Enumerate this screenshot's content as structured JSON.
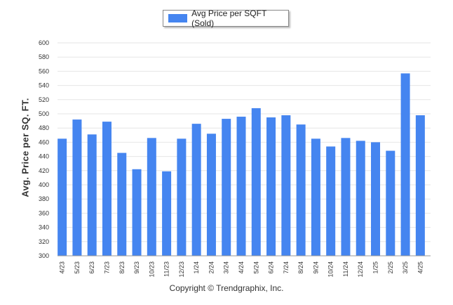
{
  "chart_data": {
    "type": "bar",
    "categories": [
      "4/23",
      "5/23",
      "6/23",
      "7/23",
      "8/23",
      "9/23",
      "10/23",
      "11/23",
      "12/23",
      "1/24",
      "2/24",
      "3/24",
      "4/24",
      "5/24",
      "6/24",
      "7/24",
      "8/24",
      "9/24",
      "10/24",
      "11/24",
      "12/24",
      "1/25",
      "2/25",
      "3/25",
      "4/25"
    ],
    "series": [
      {
        "name": "Avg Price per SQFT (Sold)",
        "values": [
          465,
          492,
          471,
          489,
          445,
          422,
          466,
          419,
          465,
          486,
          472,
          493,
          496,
          508,
          495,
          498,
          485,
          465,
          454,
          466,
          462,
          460,
          448,
          557,
          498
        ]
      }
    ],
    "ylabel": "Avg. Price per SQ. FT.",
    "ylim": [
      300,
      600
    ],
    "yticks": [
      300,
      320,
      340,
      360,
      380,
      400,
      420,
      440,
      460,
      480,
      500,
      520,
      540,
      560,
      580,
      600
    ],
    "grid": true,
    "legend_position": "top-center",
    "bar_color": "#4585f0"
  },
  "footer": {
    "credit": "Copyright © Trendgraphix, Inc."
  }
}
